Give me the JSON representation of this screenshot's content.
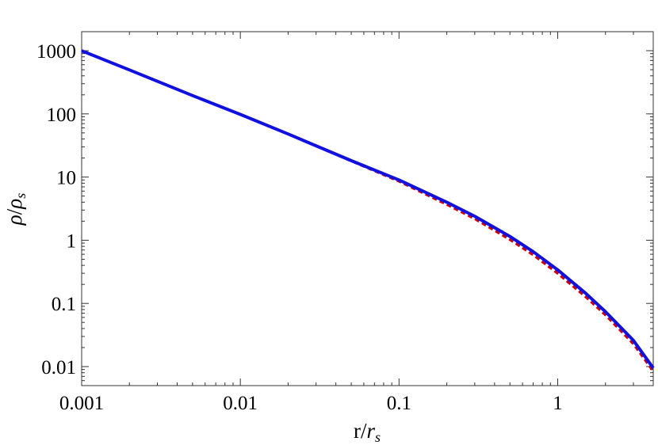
{
  "chart_data": {
    "type": "line",
    "title": "",
    "xlabel": "r/r_s",
    "ylabel": "ρ/ρ_s",
    "x_scale": "log",
    "y_scale": "log",
    "xlim": [
      0.001,
      4
    ],
    "ylim": [
      0.005,
      2000
    ],
    "grid": false,
    "legend": "none",
    "x_ticks": [
      {
        "value": 0.001,
        "label": "0.001"
      },
      {
        "value": 0.01,
        "label": "0.01"
      },
      {
        "value": 0.1,
        "label": "0.1"
      },
      {
        "value": 1,
        "label": "1"
      }
    ],
    "y_ticks": [
      {
        "value": 1000,
        "label": "1000"
      },
      {
        "value": 100,
        "label": "100"
      },
      {
        "value": 10,
        "label": "10"
      },
      {
        "value": 1,
        "label": "1"
      },
      {
        "value": 0.1,
        "label": "0.1"
      },
      {
        "value": 0.01,
        "label": "0.01"
      }
    ],
    "series": [
      {
        "style": "solid",
        "color": "#1010e0",
        "x": [
          0.001,
          0.002,
          0.005,
          0.01,
          0.02,
          0.05,
          0.1,
          0.2,
          0.3,
          0.5,
          0.7,
          1,
          1.5,
          2,
          3,
          4
        ],
        "y": [
          998,
          496,
          195,
          98,
          48,
          18.2,
          9.0,
          4.0,
          2.4,
          1.15,
          0.66,
          0.34,
          0.145,
          0.074,
          0.026,
          0.0095
        ]
      },
      {
        "style": "dashed",
        "color": "#cc0000",
        "x": [
          0.001,
          0.002,
          0.005,
          0.01,
          0.02,
          0.05,
          0.1,
          0.2,
          0.3,
          0.5,
          0.7,
          1,
          1.5,
          2,
          3,
          4
        ],
        "y": [
          998,
          496,
          195,
          98,
          48,
          18.0,
          8.6,
          3.7,
          2.2,
          1.03,
          0.59,
          0.3,
          0.128,
          0.066,
          0.023,
          0.0085
        ]
      }
    ]
  }
}
